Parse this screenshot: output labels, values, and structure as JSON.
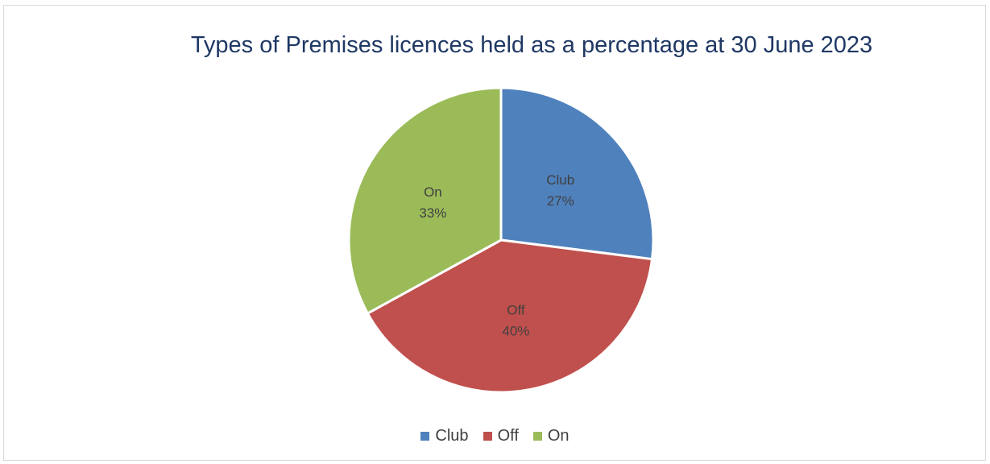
{
  "chart_data": {
    "type": "pie",
    "title": "Types of Premises licences held as a percentage at 30 June 2023",
    "slices": [
      {
        "name": "Club",
        "value": 27,
        "label_pct": "27%",
        "color": "#4f81bd"
      },
      {
        "name": "Off",
        "value": 40,
        "label_pct": "40%",
        "color": "#c0504d"
      },
      {
        "name": "On",
        "value": 33,
        "label_pct": "33%",
        "color": "#9bbb59"
      }
    ],
    "legend_placement": "bottom"
  }
}
